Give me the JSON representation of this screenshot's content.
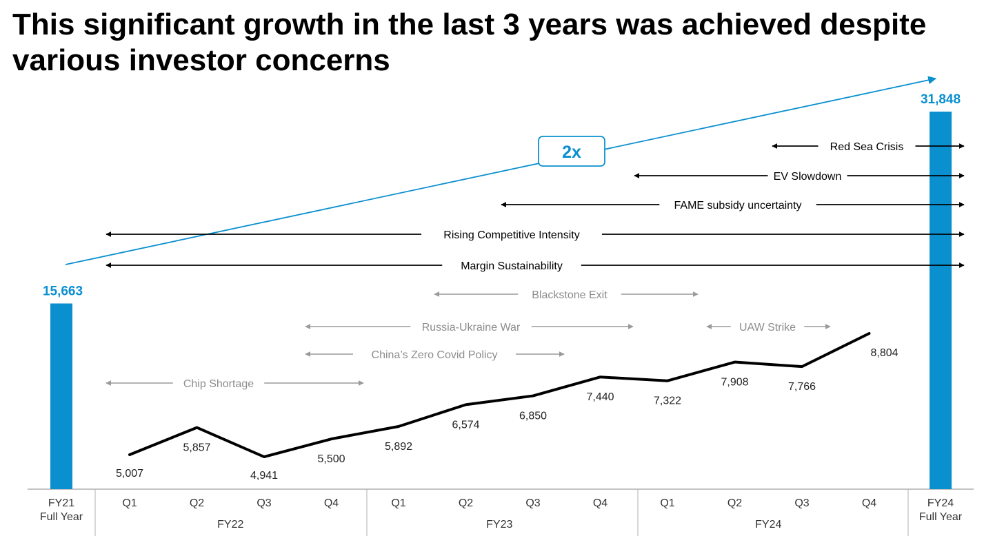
{
  "title": "This significant growth in the last 3 years was achieved despite various investor concerns",
  "colors": {
    "accent": "#0a8fcf",
    "line": "#000000",
    "concern": "#000000",
    "concern_light": "#9a9a9a",
    "axis": "#b0b0b0"
  },
  "chart_data": [
    {
      "type": "bar",
      "categories": [
        "FY21 Full Year",
        "FY24 Full Year"
      ],
      "values": [
        15663,
        31848
      ],
      "value_labels": [
        "15,663",
        "31,848"
      ],
      "growth_label": "2x"
    },
    {
      "type": "line",
      "x": [
        "FY22 Q1",
        "FY22 Q2",
        "FY22 Q3",
        "FY22 Q4",
        "FY23 Q1",
        "FY23 Q2",
        "FY23 Q3",
        "FY23 Q4",
        "FY24 Q1",
        "FY24 Q2",
        "FY24 Q3",
        "FY24 Q4"
      ],
      "values": [
        5007,
        5857,
        4941,
        5500,
        5892,
        6574,
        6850,
        7440,
        7322,
        7908,
        7766,
        8804
      ],
      "value_labels": [
        "5,007",
        "5,857",
        "4,941",
        "5,500",
        "5,892",
        "6,574",
        "6,850",
        "7,440",
        "7,322",
        "7,908",
        "7,766",
        "8,804"
      ]
    }
  ],
  "axis": {
    "left_label_1": "FY21",
    "left_label_2": "Full Year",
    "right_label_1": "FY24",
    "right_label_2": "Full Year",
    "quarters": [
      "Q1",
      "Q2",
      "Q3",
      "Q4",
      "Q1",
      "Q2",
      "Q3",
      "Q4",
      "Q1",
      "Q2",
      "Q3",
      "Q4"
    ],
    "years": [
      "FY22",
      "FY23",
      "FY24"
    ]
  },
  "concerns": [
    {
      "label": "Red Sea Crisis",
      "start": "FY24 Q3",
      "end": "FY24 Full Year",
      "style": "dark"
    },
    {
      "label": "EV Slowdown",
      "start": "FY24 Q1",
      "end": "FY24 Full Year",
      "style": "dark"
    },
    {
      "label": "FAME subsidy uncertainty",
      "start": "FY23 Q3",
      "end": "FY24 Full Year",
      "style": "dark"
    },
    {
      "label": "Rising Competitive Intensity",
      "start": "FY22 Q1",
      "end": "FY24 Full Year",
      "style": "dark"
    },
    {
      "label": "Margin Sustainability",
      "start": "FY22 Q1",
      "end": "FY24 Full Year",
      "style": "dark"
    },
    {
      "label": "Blackstone Exit",
      "start": "FY23 Q2",
      "end": "FY24 Q1",
      "style": "light"
    },
    {
      "label": "Russia-Ukraine War",
      "start": "FY22 Q4",
      "end": "FY23 Q4",
      "style": "light"
    },
    {
      "label": "UAW Strike",
      "start": "FY24 Q2",
      "end": "FY24 Q3",
      "style": "light"
    },
    {
      "label": "China’s Zero Covid Policy",
      "start": "FY22 Q4",
      "end": "FY23 Q3",
      "style": "light"
    },
    {
      "label": "Chip Shortage",
      "start": "FY22 Q1",
      "end": "FY22 Q4",
      "style": "light"
    }
  ]
}
